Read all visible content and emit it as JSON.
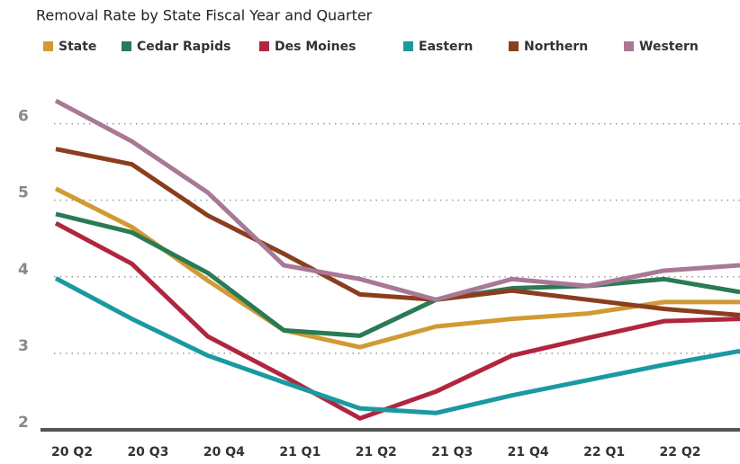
{
  "chart_data": {
    "type": "line",
    "title": "Removal Rate by State Fiscal Year and Quarter",
    "categories": [
      "20 Q2",
      "20 Q3",
      "20 Q4",
      "21 Q1",
      "21 Q2",
      "21 Q3",
      "21 Q4",
      "22 Q1",
      "22 Q2",
      null
    ],
    "series": [
      {
        "name": "State",
        "color": "#d19a33",
        "values": [
          5.15,
          4.65,
          3.95,
          3.3,
          3.08,
          3.35,
          3.45,
          3.52,
          3.67,
          3.67
        ]
      },
      {
        "name": "Cedar Rapids",
        "color": "#2a7a55",
        "values": [
          4.82,
          4.58,
          4.05,
          3.3,
          3.23,
          3.7,
          3.85,
          3.88,
          3.97,
          3.8
        ]
      },
      {
        "name": "Des Moines",
        "color": "#b0263f",
        "values": [
          4.7,
          4.17,
          3.22,
          2.7,
          2.15,
          2.5,
          2.97,
          3.2,
          3.42,
          3.45
        ]
      },
      {
        "name": "Eastern",
        "color": "#1a9aa0",
        "values": [
          3.98,
          3.45,
          2.97,
          2.62,
          2.28,
          2.22,
          2.45,
          2.65,
          2.85,
          3.03
        ]
      },
      {
        "name": "Northern",
        "color": "#8a3e1e",
        "values": [
          5.67,
          5.47,
          4.8,
          4.3,
          3.77,
          3.7,
          3.82,
          3.7,
          3.58,
          3.5
        ]
      },
      {
        "name": "Western",
        "color": "#a87894",
        "values": [
          6.3,
          5.77,
          5.1,
          4.15,
          3.97,
          3.7,
          3.97,
          3.88,
          4.08,
          4.15
        ]
      }
    ],
    "ylim": [
      2,
      6.7
    ],
    "yticks": [
      2,
      3,
      4,
      5,
      6
    ],
    "grid": true
  }
}
